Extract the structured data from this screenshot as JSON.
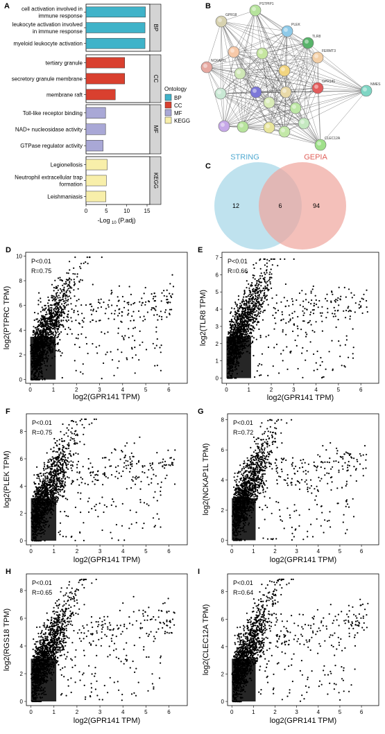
{
  "panel_labels": [
    "A",
    "B",
    "C",
    "D",
    "E",
    "F",
    "G",
    "H",
    "I"
  ],
  "chart_data": [
    {
      "type": "bar",
      "panel": "A",
      "orientation": "horizontal",
      "xlabel_prefix": "-Log",
      "xlabel_sub": "10",
      "xlabel_paren": "(P.adj)",
      "xlim": [
        0,
        15
      ],
      "xticks": [
        "0",
        "5",
        "10",
        "15"
      ],
      "legend": {
        "title": "Ontology",
        "position": "right",
        "items": [
          "BP",
          "CC",
          "MF",
          "KEGG"
        ]
      },
      "colors": {
        "BP": "#3fb3c9",
        "CC": "#d9402f",
        "MF": "#a9a8d6",
        "KEGG": "#f8efaa"
      },
      "groups": [
        {
          "name": "BP",
          "categories": [
            {
              "label": [
                "cell activation involved in",
                "immune response"
              ],
              "value": 14.6
            },
            {
              "label": [
                "leukocyte activation involved",
                "in immune response"
              ],
              "value": 14.5
            },
            {
              "label": [
                "myeloid leukocyte activation"
              ],
              "value": 14.5
            }
          ]
        },
        {
          "name": "CC",
          "categories": [
            {
              "label": [
                "tertiary granule"
              ],
              "value": 9.5
            },
            {
              "label": [
                "secretory granule membrane"
              ],
              "value": 9.5
            },
            {
              "label": [
                "membrane raft"
              ],
              "value": 7.2
            }
          ]
        },
        {
          "name": "MF",
          "categories": [
            {
              "label": [
                "Toll-like receptor binding"
              ],
              "value": 4.8
            },
            {
              "label": [
                "NAD+ nucleosidase activity"
              ],
              "value": 4.8
            },
            {
              "label": [
                "GTPase regulator activity"
              ],
              "value": 4.2
            }
          ]
        },
        {
          "name": "KEGG",
          "categories": [
            {
              "label": [
                "Legionellosis"
              ],
              "value": 5.2
            },
            {
              "label": [
                "Neutrophil extracellular trap",
                "formation"
              ],
              "value": 5.0
            },
            {
              "label": [
                "Leishmaniasis"
              ],
              "value": 4.9
            }
          ]
        }
      ]
    },
    {
      "type": "network",
      "panel": "B",
      "nodes": [
        {
          "label": "PSTPIP1",
          "color": "#b6e39c"
        },
        {
          "label": "GPR18",
          "color": "#d7d2b0"
        },
        {
          "label": "PLEK",
          "color": "#8ecae9"
        },
        {
          "label": "TLR8",
          "color": "#58b36a"
        },
        {
          "label": "FERMT3",
          "color": "#f3cfa6"
        },
        {
          "label": "NCKAP1L",
          "color": "#e6a8a0"
        },
        {
          "label": "GPR141",
          "color": "#e25c5c"
        },
        {
          "label": "NMES",
          "color": "#7fd6c4"
        },
        {
          "label": "CLEC12A",
          "color": "#9fe08a"
        },
        {
          "label": "",
          "color": "#f7c9a8"
        },
        {
          "label": "",
          "color": "#c6e6a0"
        },
        {
          "label": "",
          "color": "#f2d580"
        },
        {
          "label": "",
          "color": "#cfe7b6"
        },
        {
          "label": "",
          "color": "#e9d9a8"
        },
        {
          "label": "",
          "color": "#c9e8d4"
        },
        {
          "label": "",
          "color": "#7c78d8"
        },
        {
          "label": "",
          "color": "#d9ecb8"
        },
        {
          "label": "",
          "color": "#bde7a5"
        },
        {
          "label": "",
          "color": "#c6a8e8"
        },
        {
          "label": "",
          "color": "#b7e39c"
        },
        {
          "label": "",
          "color": "#e8e59c"
        },
        {
          "label": "",
          "color": "#c3e8a8"
        },
        {
          "label": "",
          "color": "#c4e8c0"
        }
      ]
    },
    {
      "type": "venn",
      "panel": "C",
      "sets": [
        {
          "name": "STRING",
          "color": "#a9d8e8",
          "label_color": "#4fa9d1"
        },
        {
          "name": "GEPIA",
          "color": "#f0a59c",
          "label_color": "#e0605a"
        }
      ],
      "values": {
        "only_left": "12",
        "both": "6",
        "only_right": "94"
      }
    },
    {
      "type": "scatter",
      "panel": "D",
      "xlabel": "log2(GPR141 TPM)",
      "ylabel": "log2(PTPRC TPM)",
      "p_text": "P<0.01",
      "r_text": "R=0.75",
      "R": 0.75,
      "xlim": [
        -0.2,
        6.8
      ],
      "ylim": [
        -0.3,
        10.3
      ],
      "xticks": [
        0,
        1,
        2,
        3,
        4,
        5,
        6
      ],
      "yticks": [
        0,
        2,
        4,
        6,
        8,
        10
      ]
    },
    {
      "type": "scatter",
      "panel": "E",
      "xlabel": "log2(GPR141 TPM)",
      "ylabel": "log2(TLR8 TPM)",
      "p_text": "P<0.01",
      "r_text": "R=0.66",
      "R": 0.66,
      "xlim": [
        -0.2,
        6.8
      ],
      "ylim": [
        -0.3,
        7.3
      ],
      "xticks": [
        0,
        1,
        2,
        3,
        4,
        5,
        6
      ],
      "yticks": [
        0,
        1,
        2,
        3,
        4,
        5,
        6,
        7
      ]
    },
    {
      "type": "scatter",
      "panel": "F",
      "xlabel": "log2(GPR141 TPM)",
      "ylabel": "log2(PLEK TPM)",
      "p_text": "P<0.01",
      "r_text": "R=0.75",
      "R": 0.75,
      "xlim": [
        -0.2,
        6.8
      ],
      "ylim": [
        -0.3,
        9.3
      ],
      "xticks": [
        0,
        1,
        2,
        3,
        4,
        5,
        6
      ],
      "yticks": [
        0,
        2,
        4,
        6,
        8
      ]
    },
    {
      "type": "scatter",
      "panel": "G",
      "xlabel": "log2(GPR141 TPM)",
      "ylabel": "log2(NCKAP1L TPM)",
      "p_text": "P<0.01",
      "r_text": "R=0.72",
      "R": 0.72,
      "xlim": [
        -0.2,
        6.8
      ],
      "ylim": [
        -0.3,
        8.4
      ],
      "xticks": [
        0,
        1,
        2,
        3,
        4,
        5,
        6
      ],
      "yticks": [
        0,
        2,
        4,
        6,
        8
      ]
    },
    {
      "type": "scatter",
      "panel": "H",
      "xlabel": "log2(GPR141 TPM)",
      "ylabel": "log2(RGS18 TPM)",
      "p_text": "P<0.01",
      "r_text": "R=0.65",
      "R": 0.65,
      "xlim": [
        -0.2,
        6.8
      ],
      "ylim": [
        -0.3,
        9.2
      ],
      "xticks": [
        0,
        1,
        2,
        3,
        4,
        5,
        6
      ],
      "yticks": [
        0,
        2,
        4,
        6,
        8
      ]
    },
    {
      "type": "scatter",
      "panel": "I",
      "xlabel": "log2(GPR141 TPM)",
      "ylabel": "log2(CLEC12A TPM)",
      "p_text": "P<0.01",
      "r_text": "R=0.64",
      "R": 0.64,
      "xlim": [
        -0.2,
        6.8
      ],
      "ylim": [
        -0.3,
        9.3
      ],
      "xticks": [
        0,
        1,
        2,
        3,
        4,
        5,
        6
      ],
      "yticks": [
        0,
        2,
        4,
        6,
        8
      ]
    }
  ]
}
